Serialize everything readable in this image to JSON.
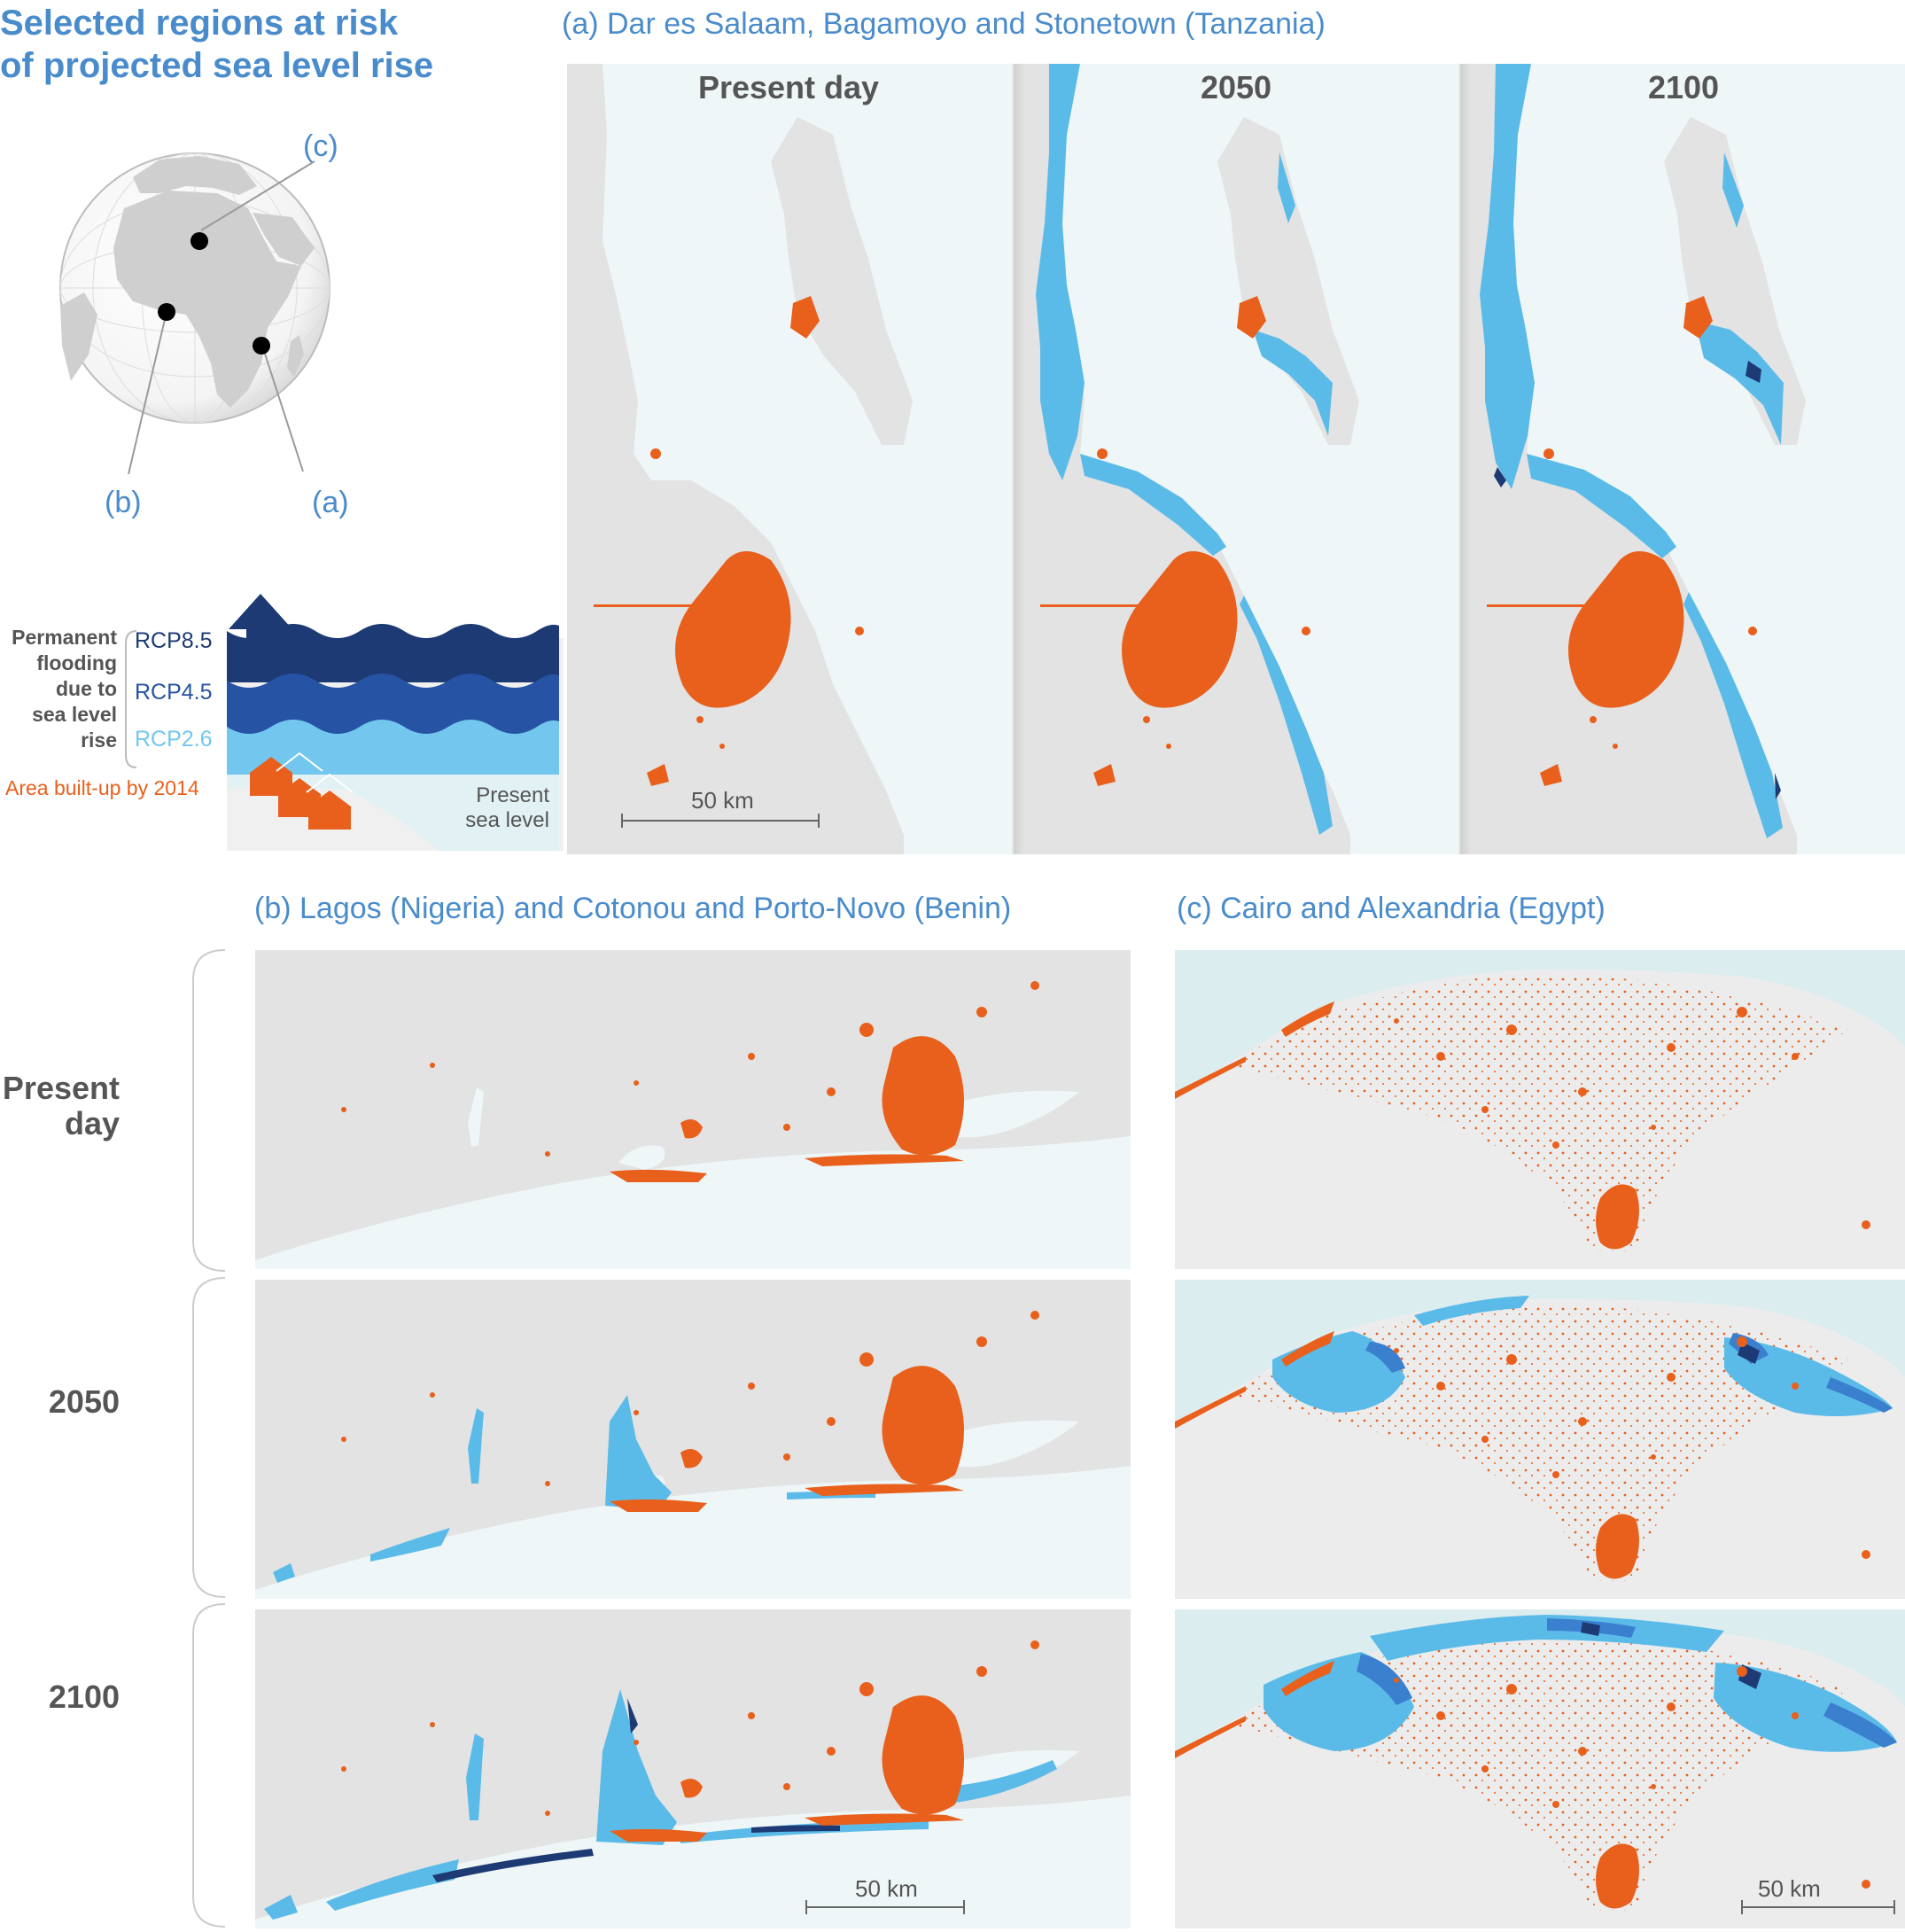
{
  "main_title": {
    "line1": "Selected regions at risk",
    "line2": "of projected sea level rise"
  },
  "globe": {
    "labels": {
      "a": "(a)",
      "b": "(b)",
      "c": "(c)"
    }
  },
  "legend": {
    "flooding_label": [
      "Permanent",
      "flooding",
      "due to",
      "sea level",
      "rise"
    ],
    "scenarios": [
      {
        "name": "RCP8.5",
        "color": "#1d3a74"
      },
      {
        "name": "RCP4.5",
        "color": "#2653a3"
      },
      {
        "name": "RCP2.6",
        "color": "#73c6ee"
      }
    ],
    "built_up_label": "Area built-up by 2014",
    "built_up_color": "#e8601c",
    "present_sea_level": [
      "Present",
      "sea level"
    ]
  },
  "panel_a": {
    "title": "(a) Dar es Salaam, Bagamoyo and Stonetown (Tanzania)",
    "columns": [
      "Present day",
      "2050",
      "2100"
    ],
    "scale": "50 km"
  },
  "panel_b": {
    "title": "(b) Lagos (Nigeria) and Cotonou and Porto-Novo (Benin)",
    "rows": [
      [
        "Present",
        "day"
      ],
      [
        "2050"
      ],
      [
        "2100"
      ]
    ],
    "scale": "50 km"
  },
  "panel_c": {
    "title": "(c) Cairo and Alexandria (Egypt)",
    "scale": "50 km"
  },
  "colors": {
    "land": "#e3e3e3",
    "sea": "#eef6f8",
    "built": "#e8601c",
    "flood_26": "#5bbbe8",
    "flood_45": "#3b7fcf",
    "flood_85": "#1d3a74"
  }
}
